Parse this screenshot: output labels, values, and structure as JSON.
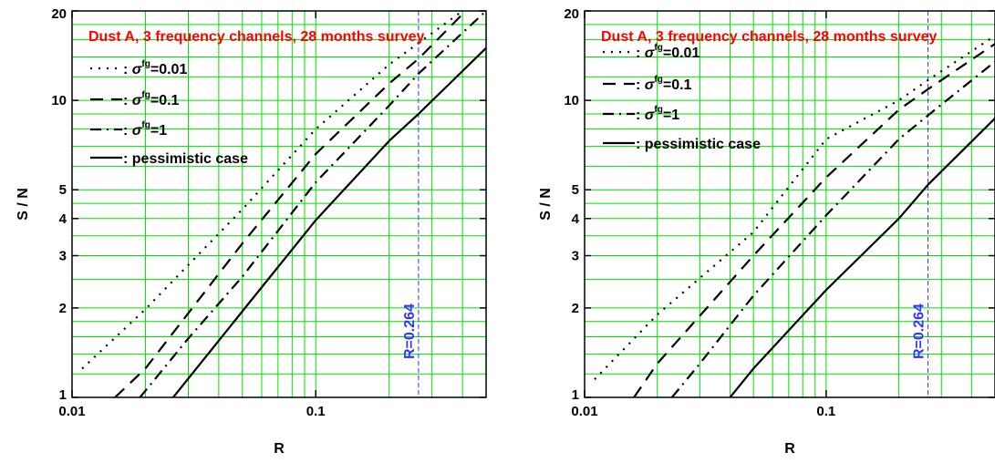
{
  "colors": {
    "grid": "#00e000",
    "title": "#ff0000",
    "marker": "#3333ff",
    "curve": "#000000"
  },
  "chart_data": [
    {
      "type": "line",
      "title": "Dust A, 3 frequency channels, 28 months survey",
      "xlabel": "R",
      "ylabel": "S / N",
      "xscale": "log",
      "yscale": "log",
      "xlim": [
        0.01,
        0.5
      ],
      "ylim": [
        1,
        20
      ],
      "xtick_labels": [
        "0.01",
        "0.1"
      ],
      "ytick_labels": [
        "1",
        "2",
        "3",
        "4",
        "5",
        "10",
        "20"
      ],
      "grid": true,
      "legend_position": "top-left",
      "vline": {
        "x": 0.264,
        "label": "R=0.264"
      },
      "series": [
        {
          "name": "σfg=0.01",
          "label_base": "σ",
          "label_sup": "fg",
          "label_val": "=0.01",
          "style": "dotted",
          "x": [
            0.011,
            0.02,
            0.05,
            0.1,
            0.2,
            0.264,
            0.4
          ],
          "y": [
            1.25,
            1.98,
            4.3,
            8.0,
            13.2,
            15.6,
            20.0
          ]
        },
        {
          "name": "σfg=0.1",
          "label_base": "σ",
          "label_sup": "fg",
          "label_val": "=0.1",
          "style": "dashed",
          "x": [
            0.015,
            0.02,
            0.05,
            0.1,
            0.2,
            0.264,
            0.4
          ],
          "y": [
            1.0,
            1.25,
            3.3,
            6.6,
            11.4,
            13.8,
            19.5
          ]
        },
        {
          "name": "σfg=1",
          "label_base": "σ",
          "label_sup": "fg",
          "label_val": "=1",
          "style": "dashdot",
          "x": [
            0.019,
            0.03,
            0.05,
            0.1,
            0.2,
            0.264,
            0.5
          ],
          "y": [
            1.0,
            1.58,
            2.55,
            5.3,
            9.6,
            12.3,
            20.0
          ]
        },
        {
          "name": "pessimistic case",
          "label_base": "",
          "label_sup": "",
          "label_val": "pessimistic case",
          "style": "solid",
          "x": [
            0.026,
            0.05,
            0.1,
            0.2,
            0.264,
            0.5
          ],
          "y": [
            1.0,
            1.95,
            3.95,
            7.3,
            9.0,
            15.0
          ]
        }
      ]
    },
    {
      "type": "line",
      "title": "Dust A, 3 frequency channels, 28 months survey",
      "xlabel": "R",
      "ylabel": "S / N",
      "xscale": "log",
      "yscale": "log",
      "xlim": [
        0.01,
        0.5
      ],
      "ylim": [
        1,
        20
      ],
      "xtick_labels": [
        "0.01",
        "0.1"
      ],
      "ytick_labels": [
        "1",
        "2",
        "3",
        "4",
        "5",
        "10",
        "20"
      ],
      "grid": true,
      "legend_position": "top-left",
      "vline": {
        "x": 0.264,
        "label": "R=0.264"
      },
      "series": [
        {
          "name": "σfg=0.01",
          "label_base": "σ",
          "label_sup": "fg",
          "label_val": "=0.01",
          "style": "dotted",
          "x": [
            0.011,
            0.02,
            0.05,
            0.1,
            0.2,
            0.264,
            0.5
          ],
          "y": [
            1.15,
            1.9,
            3.6,
            7.4,
            10.0,
            11.7,
            16.5
          ]
        },
        {
          "name": "σfg=0.1",
          "label_base": "σ",
          "label_sup": "fg",
          "label_val": "=0.1",
          "style": "dashed",
          "x": [
            0.016,
            0.02,
            0.05,
            0.1,
            0.2,
            0.264,
            0.5
          ],
          "y": [
            1.0,
            1.3,
            3.0,
            5.5,
            9.3,
            10.9,
            15.5
          ]
        },
        {
          "name": "σfg=1",
          "label_base": "σ",
          "label_sup": "fg",
          "label_val": "=1",
          "style": "dashdot",
          "x": [
            0.023,
            0.03,
            0.05,
            0.1,
            0.2,
            0.264,
            0.5
          ],
          "y": [
            1.0,
            1.3,
            2.2,
            4.1,
            7.4,
            8.9,
            13.5
          ]
        },
        {
          "name": "pessimistic case",
          "label_base": "",
          "label_sup": "",
          "label_val": "pessimistic case",
          "style": "solid",
          "x": [
            0.04,
            0.05,
            0.1,
            0.2,
            0.264,
            0.5
          ],
          "y": [
            1.0,
            1.25,
            2.3,
            4.0,
            5.2,
            8.7
          ]
        }
      ]
    }
  ]
}
